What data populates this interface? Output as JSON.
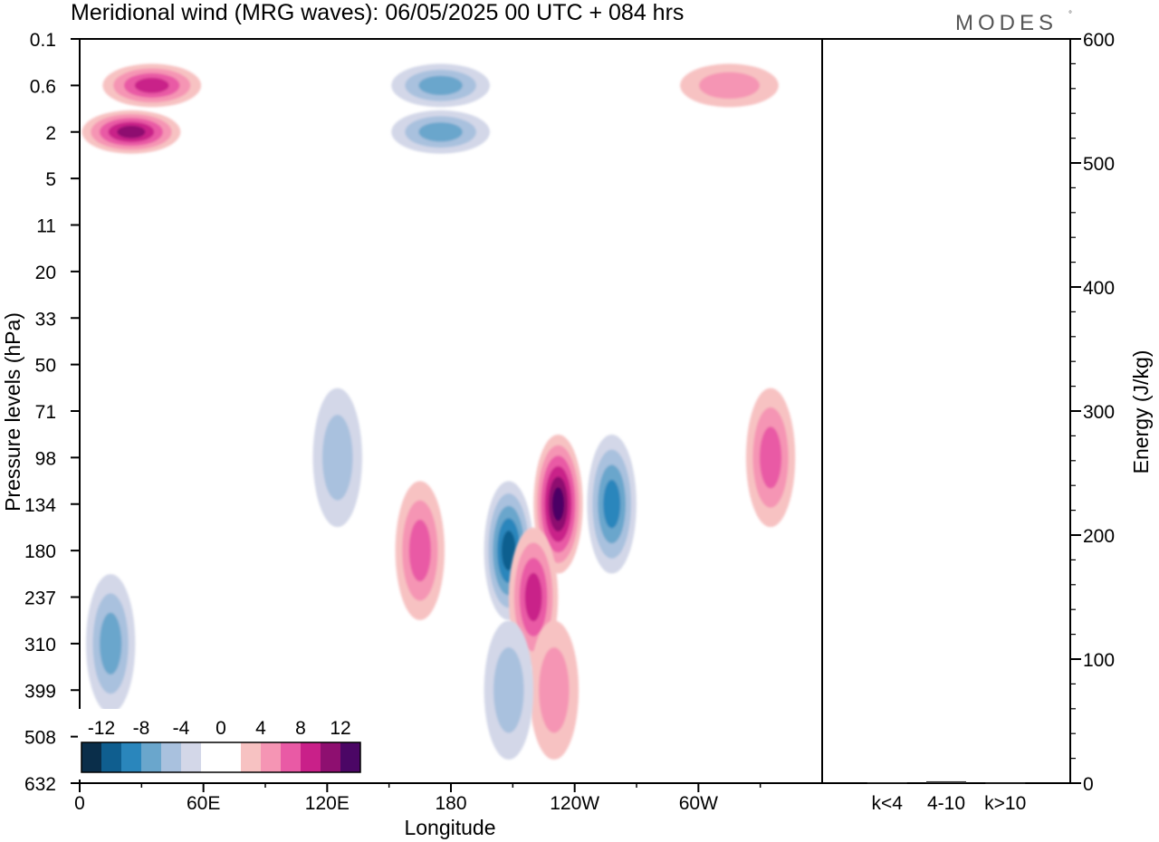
{
  "title": "Meridional wind (MRG waves):  06/05/2025  00 UTC  + 084 hrs",
  "brand": "MODES",
  "brand_mark": "°",
  "colors": {
    "neg": [
      "#0a2e4a",
      "#0f5e8f",
      "#2a86bc",
      "#6aa6cc",
      "#a9c1de",
      "#d3d7e8"
    ],
    "pos": [
      "#f7c2c2",
      "#f595b4",
      "#e95aa5",
      "#c92089",
      "#8e0f70",
      "#4b0665"
    ],
    "zero": "#ffffff"
  },
  "chart_data": [
    {
      "type": "heatmap",
      "title": "Meridional wind (MRG waves):  06/05/2025  00 UTC  + 084 hrs",
      "xlabel": "Longitude",
      "ylabel": "Pressure levels (hPa)",
      "x_ticks": [
        "0",
        "60E",
        "120E",
        "180",
        "120W",
        "60W"
      ],
      "x_tick_values": [
        0,
        60,
        120,
        180,
        240,
        300
      ],
      "xlim": [
        0,
        360
      ],
      "y_ticks": [
        "0.1",
        "0.6",
        "2",
        "5",
        "11",
        "20",
        "33",
        "50",
        "71",
        "98",
        "134",
        "180",
        "237",
        "310",
        "399",
        "508",
        "632"
      ],
      "y_scale": "model levels (top 0.1 hPa, bottom 632 hPa)",
      "colorbar": {
        "labels": [
          "-12",
          "-8",
          "-4",
          "0",
          "4",
          "8",
          "12"
        ],
        "bounds": [
          -14,
          -12,
          -10,
          -8,
          -6,
          -4,
          -2,
          2,
          4,
          6,
          8,
          10,
          12,
          14
        ]
      },
      "features": [
        {
          "lon": 25,
          "level": "2",
          "value": 10
        },
        {
          "lon": 35,
          "level": "0.6",
          "value": 8
        },
        {
          "lon": 175,
          "level": "0.6",
          "value": -6
        },
        {
          "lon": 175,
          "level": "2",
          "value": -6
        },
        {
          "lon": 315,
          "level": "0.6",
          "value": 5
        },
        {
          "lon": 15,
          "level": "310",
          "value": -6
        },
        {
          "lon": 165,
          "level": "180",
          "value": 6
        },
        {
          "lon": 208,
          "level": "180",
          "value": -10
        },
        {
          "lon": 232,
          "level": "134",
          "value": 13
        },
        {
          "lon": 220,
          "level": "237",
          "value": 8
        },
        {
          "lon": 258,
          "level": "134",
          "value": -8
        },
        {
          "lon": 335,
          "level": "98",
          "value": 6
        },
        {
          "lon": 125,
          "level": "98",
          "value": -5
        },
        {
          "lon": 230,
          "level": "399",
          "value": 4
        },
        {
          "lon": 208,
          "level": "399",
          "value": -4
        }
      ]
    },
    {
      "type": "bar",
      "categories": [
        "k<4",
        "4-10",
        "k>10"
      ],
      "values": [
        0.5,
        1.5,
        0.3
      ],
      "ylabel": "Energy (J/kg)",
      "ylim": [
        0,
        600
      ],
      "y_ticks": [
        "0",
        "100",
        "200",
        "300",
        "400",
        "500",
        "600"
      ]
    }
  ]
}
